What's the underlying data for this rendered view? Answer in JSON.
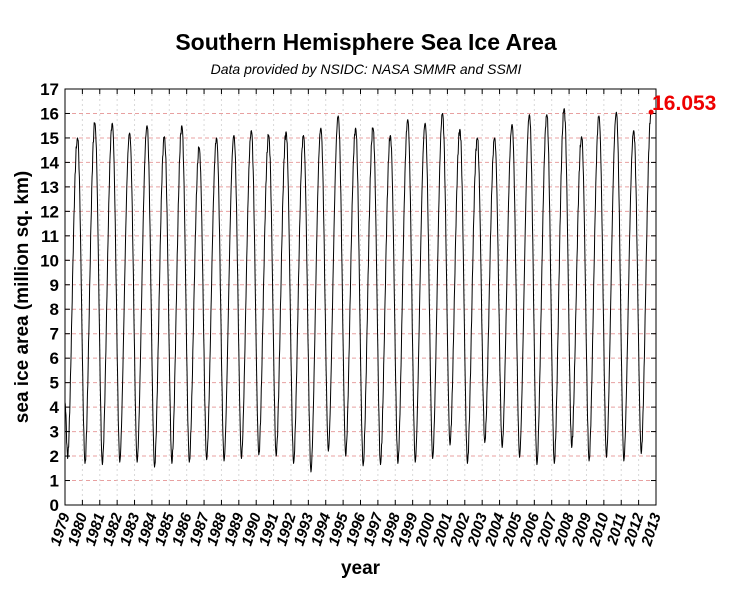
{
  "chart_data": {
    "type": "line",
    "title": "Southern Hemisphere Sea Ice Area",
    "subtitle": "Data provided by NSIDC: NASA SMMR and SSMI",
    "xlabel": "year",
    "ylabel": "sea ice area (million sq. km)",
    "xlim": [
      1979,
      2013
    ],
    "ylim": [
      0,
      17
    ],
    "xticks": [
      "1979",
      "1980",
      "1981",
      "1982",
      "1983",
      "1984",
      "1985",
      "1986",
      "1987",
      "1988",
      "1989",
      "1990",
      "1991",
      "1992",
      "1993",
      "1994",
      "1995",
      "1996",
      "1997",
      "1998",
      "1999",
      "2000",
      "2001",
      "2002",
      "2003",
      "2004",
      "2005",
      "2006",
      "2007",
      "2008",
      "2009",
      "2010",
      "2011",
      "2012",
      "2013"
    ],
    "yticks": [
      "0",
      "1",
      "2",
      "3",
      "4",
      "5",
      "6",
      "7",
      "8",
      "9",
      "10",
      "11",
      "12",
      "13",
      "14",
      "15",
      "16",
      "17"
    ],
    "grid": true,
    "line_color": "#000000",
    "grid_color": "#e8a0a0",
    "annotation": {
      "text": "16.053",
      "x": 2012.72,
      "y": 16.053,
      "color": "#ee0000"
    },
    "series": [
      {
        "annual_min": [
          [
            1979.15,
            1.9
          ],
          [
            1980.15,
            1.7
          ],
          [
            1981.15,
            1.65
          ],
          [
            1982.15,
            1.75
          ],
          [
            1983.15,
            1.75
          ],
          [
            1984.15,
            1.55
          ],
          [
            1985.15,
            1.7
          ],
          [
            1986.15,
            1.75
          ],
          [
            1987.15,
            1.85
          ],
          [
            1988.15,
            1.8
          ],
          [
            1989.15,
            1.9
          ],
          [
            1990.15,
            2.05
          ],
          [
            1991.15,
            2.0
          ],
          [
            1992.15,
            1.7
          ],
          [
            1993.15,
            1.35
          ],
          [
            1994.15,
            2.2
          ],
          [
            1995.15,
            2.0
          ],
          [
            1996.15,
            1.6
          ],
          [
            1997.15,
            1.65
          ],
          [
            1998.15,
            1.7
          ],
          [
            1999.15,
            1.75
          ],
          [
            2000.15,
            1.9
          ],
          [
            2001.15,
            2.45
          ],
          [
            2002.15,
            1.7
          ],
          [
            2003.15,
            2.55
          ],
          [
            2004.15,
            2.35
          ],
          [
            2005.15,
            1.95
          ],
          [
            2006.15,
            1.65
          ],
          [
            2007.15,
            1.7
          ],
          [
            2008.15,
            2.35
          ],
          [
            2009.15,
            1.8
          ],
          [
            2010.15,
            1.95
          ],
          [
            2011.15,
            1.8
          ],
          [
            2012.15,
            2.1
          ]
        ],
        "annual_max": [
          [
            1979.72,
            15.0
          ],
          [
            1980.72,
            15.6
          ],
          [
            1981.72,
            15.6
          ],
          [
            1982.72,
            15.2
          ],
          [
            1983.72,
            15.5
          ],
          [
            1984.72,
            15.05
          ],
          [
            1985.72,
            15.5
          ],
          [
            1986.72,
            14.6
          ],
          [
            1987.72,
            15.0
          ],
          [
            1988.72,
            15.1
          ],
          [
            1989.72,
            15.3
          ],
          [
            1990.72,
            15.1
          ],
          [
            1991.72,
            15.25
          ],
          [
            1992.72,
            15.1
          ],
          [
            1993.72,
            15.4
          ],
          [
            1994.72,
            15.9
          ],
          [
            1995.72,
            15.4
          ],
          [
            1996.72,
            15.4
          ],
          [
            1997.72,
            15.1
          ],
          [
            1998.72,
            15.75
          ],
          [
            1999.72,
            15.6
          ],
          [
            2000.72,
            16.0
          ],
          [
            2001.72,
            15.35
          ],
          [
            2002.72,
            15.0
          ],
          [
            2003.72,
            15.0
          ],
          [
            2004.72,
            15.55
          ],
          [
            2005.72,
            15.95
          ],
          [
            2006.72,
            15.95
          ],
          [
            2007.72,
            16.2
          ],
          [
            2008.72,
            15.05
          ],
          [
            2009.72,
            15.9
          ],
          [
            2010.72,
            16.05
          ],
          [
            2011.72,
            15.3
          ],
          [
            2012.72,
            16.053
          ]
        ]
      }
    ]
  }
}
